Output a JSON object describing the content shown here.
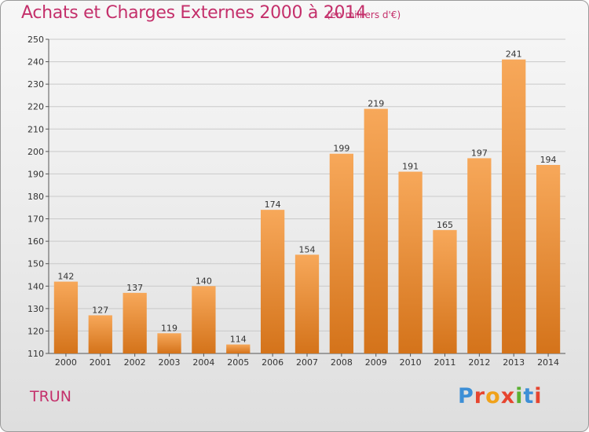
{
  "header": {
    "title": "Achats et Charges Externes 2000 à 2014",
    "subtitle": "(en milliers d'€)"
  },
  "commune": "TRUN",
  "logo": {
    "text": "Proxiti",
    "letter_colors": [
      "#3d8fd6",
      "#e6452f",
      "#f0a21a",
      "#e6452f",
      "#5ab031",
      "#3d8fd6",
      "#e6452f"
    ]
  },
  "colors": {
    "bar_top": "#f7a85a",
    "bar_bottom": "#d4731a",
    "title": "#c4306b",
    "grid": "#c9c9c9"
  },
  "chart_data": {
    "type": "bar",
    "categories": [
      "2000",
      "2001",
      "2002",
      "2003",
      "2004",
      "2005",
      "2006",
      "2007",
      "2008",
      "2009",
      "2010",
      "2011",
      "2012",
      "2013",
      "2014"
    ],
    "values": [
      142,
      127,
      137,
      119,
      140,
      114,
      174,
      154,
      199,
      219,
      191,
      165,
      197,
      241,
      194
    ],
    "ylim": [
      110,
      250
    ],
    "yticks": [
      110,
      120,
      130,
      140,
      150,
      160,
      170,
      180,
      190,
      200,
      210,
      220,
      230,
      240,
      250
    ],
    "grid": true,
    "data_labels": true
  }
}
